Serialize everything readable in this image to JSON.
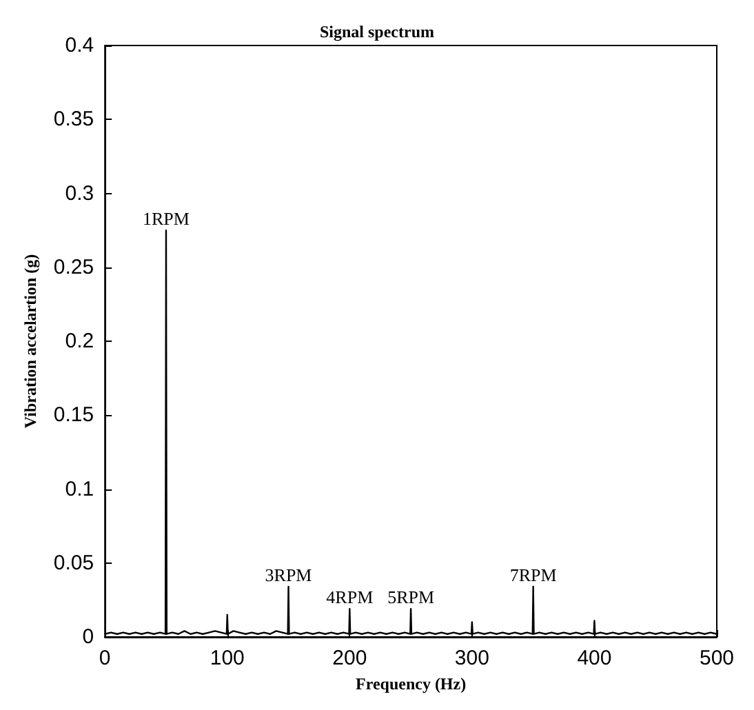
{
  "chart_data": {
    "type": "line",
    "title": "Signal spectrum",
    "xlabel": "Frequency (Hz)",
    "ylabel": "Vibration accelartion (g)",
    "series": [
      {
        "color": "#000000",
        "x": [
          0,
          5,
          10,
          15,
          20,
          25,
          30,
          35,
          40,
          45,
          49.5,
          50,
          50.5,
          55,
          60,
          65,
          70,
          75,
          80,
          85,
          90,
          95,
          99.5,
          100,
          100.5,
          105,
          110,
          115,
          120,
          125,
          130,
          135,
          140,
          145,
          149.5,
          150,
          150.5,
          155,
          160,
          165,
          170,
          175,
          180,
          185,
          190,
          195,
          199.5,
          200,
          200.5,
          205,
          210,
          215,
          220,
          225,
          230,
          235,
          240,
          245,
          249.5,
          250,
          250.5,
          255,
          260,
          265,
          270,
          275,
          280,
          285,
          290,
          295,
          299.5,
          300,
          300.5,
          305,
          310,
          315,
          320,
          325,
          330,
          335,
          340,
          345,
          349.5,
          350,
          350.5,
          355,
          360,
          365,
          370,
          375,
          380,
          385,
          390,
          395,
          399.5,
          400,
          400.5,
          405,
          410,
          415,
          420,
          425,
          430,
          435,
          440,
          445,
          450,
          455,
          460,
          465,
          470,
          475,
          480,
          485,
          490,
          495,
          500
        ],
        "values": [
          0.002,
          0.003,
          0.002,
          0.003,
          0.002,
          0.003,
          0.002,
          0.003,
          0.002,
          0.003,
          0.002,
          0.275,
          0.002,
          0.003,
          0.002,
          0.004,
          0.002,
          0.003,
          0.002,
          0.003,
          0.004,
          0.003,
          0.002,
          0.015,
          0.002,
          0.004,
          0.003,
          0.002,
          0.003,
          0.002,
          0.003,
          0.002,
          0.004,
          0.003,
          0.002,
          0.034,
          0.002,
          0.003,
          0.002,
          0.003,
          0.002,
          0.003,
          0.002,
          0.003,
          0.002,
          0.003,
          0.002,
          0.019,
          0.002,
          0.003,
          0.002,
          0.003,
          0.002,
          0.003,
          0.002,
          0.003,
          0.002,
          0.003,
          0.002,
          0.019,
          0.002,
          0.003,
          0.002,
          0.003,
          0.002,
          0.003,
          0.002,
          0.003,
          0.002,
          0.003,
          0.002,
          0.01,
          0.002,
          0.003,
          0.002,
          0.003,
          0.002,
          0.003,
          0.002,
          0.003,
          0.002,
          0.003,
          0.002,
          0.034,
          0.002,
          0.003,
          0.002,
          0.003,
          0.002,
          0.003,
          0.002,
          0.003,
          0.002,
          0.003,
          0.002,
          0.011,
          0.002,
          0.003,
          0.002,
          0.003,
          0.002,
          0.003,
          0.002,
          0.003,
          0.002,
          0.003,
          0.002,
          0.003,
          0.002,
          0.003,
          0.002,
          0.003,
          0.002,
          0.003,
          0.002,
          0.003,
          0.002
        ]
      }
    ],
    "annotations": [
      {
        "text": "1RPM",
        "x": 50,
        "y": 0.275
      },
      {
        "text": "3RPM",
        "x": 150,
        "y": 0.034
      },
      {
        "text": "4RPM",
        "x": 200,
        "y": 0.019
      },
      {
        "text": "5RPM",
        "x": 250,
        "y": 0.019
      },
      {
        "text": "7RPM",
        "x": 350,
        "y": 0.034
      }
    ],
    "xlim": [
      0,
      500
    ],
    "xticks": [
      0,
      100,
      200,
      300,
      400,
      500
    ],
    "ylim": [
      0,
      0.4
    ],
    "yticks": [
      0,
      0.05,
      0.1,
      0.15,
      0.2,
      0.25,
      0.3,
      0.35,
      0.4
    ],
    "grid": false,
    "marker": "none",
    "line_style": "solid"
  }
}
